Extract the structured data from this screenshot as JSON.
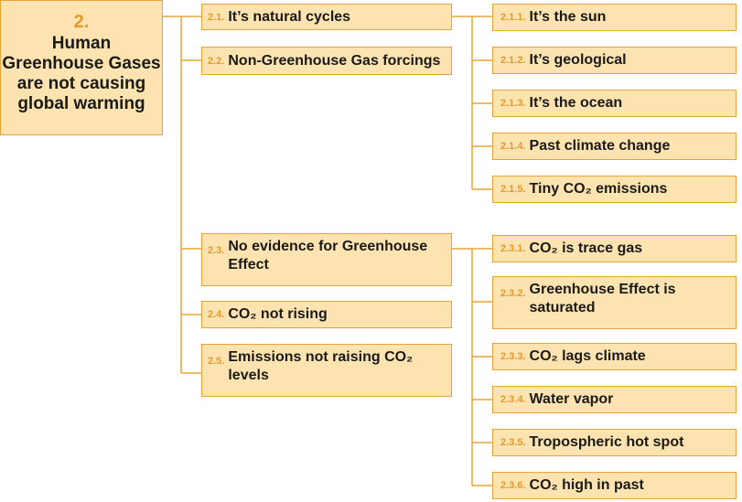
{
  "root": {
    "number": "2.",
    "title": "Human\nGreenhouse Gases\nare not causing\nglobal warming"
  },
  "level1": [
    {
      "number": "2.1.",
      "label": "It’s natural cycles"
    },
    {
      "number": "2.2.",
      "label": "Non-Greenhouse Gas forcings"
    },
    {
      "number": "2.3.",
      "label": "No evidence for Greenhouse Effect"
    },
    {
      "number": "2.4.",
      "label": "CO₂ not rising"
    },
    {
      "number": "2.5.",
      "label": "Emissions not raising CO₂ levels"
    }
  ],
  "level2_a": [
    {
      "number": "2.1.1.",
      "label": "It’s the sun"
    },
    {
      "number": "2.1.2.",
      "label": "It’s geological"
    },
    {
      "number": "2.1.3.",
      "label": "It’s the ocean"
    },
    {
      "number": "2.1.4.",
      "label": "Past climate change"
    },
    {
      "number": "2.1.5.",
      "label": "Tiny CO₂ emissions"
    }
  ],
  "level2_b": [
    {
      "number": "2.3.1.",
      "label": "CO₂ is trace gas"
    },
    {
      "number": "2.3.2.",
      "label": "Greenhouse Effect is saturated"
    },
    {
      "number": "2.3.3.",
      "label": "CO₂ lags climate"
    },
    {
      "number": "2.3.4.",
      "label": "Water vapor"
    },
    {
      "number": "2.3.5.",
      "label": "Tropospheric hot spot"
    },
    {
      "number": "2.3.6.",
      "label": "CO₂ high in past"
    }
  ],
  "colors": {
    "box_fill": "#fde3b0",
    "box_border": "#e8a33a",
    "number": "#e39a2a",
    "text": "#1a1a1a"
  }
}
